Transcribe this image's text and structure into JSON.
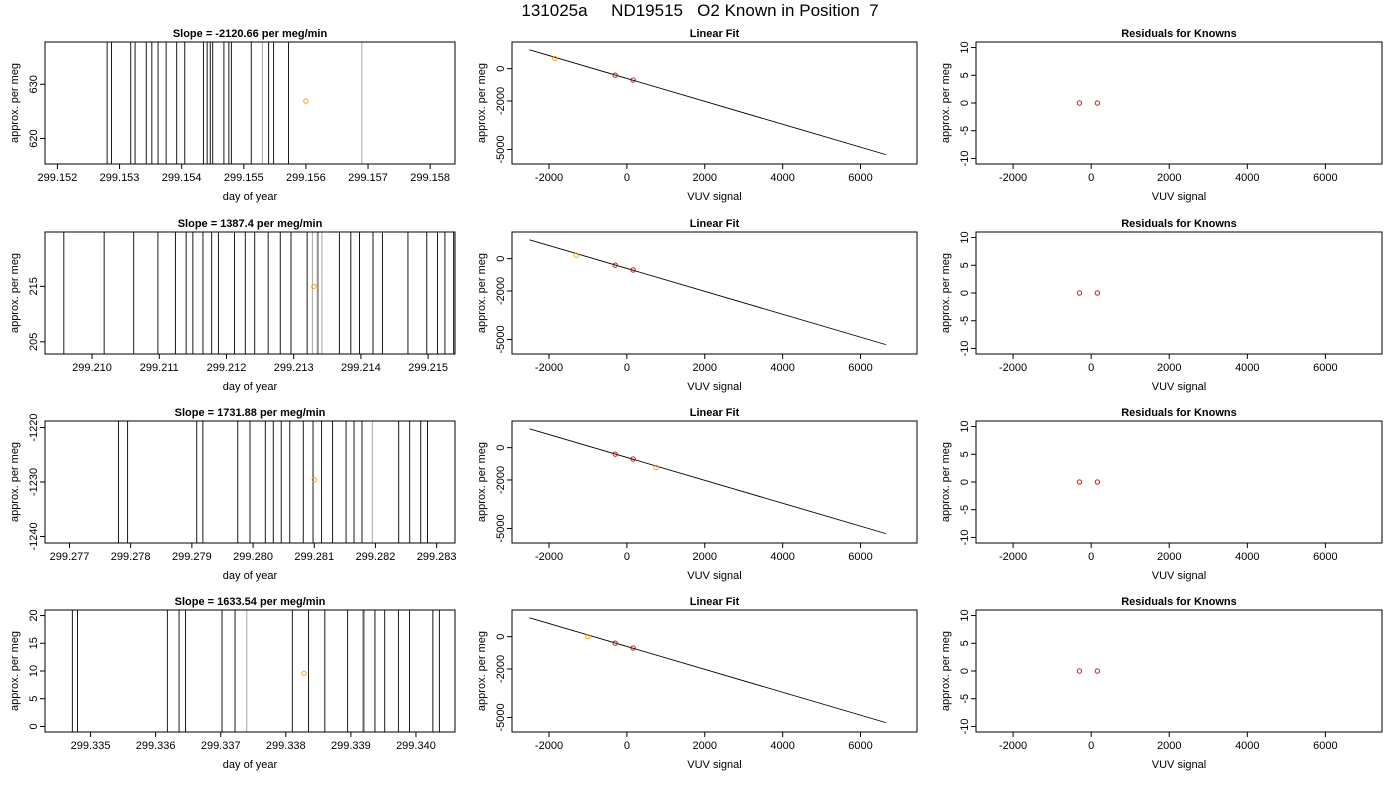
{
  "title": "131025a     ND19515   O2 Known in Position  7",
  "colors": {
    "axis": "#000000",
    "trace": "#000000",
    "trace_grey": "#b4b4b4",
    "known": "#ff9900",
    "fit_point": "#cc0000",
    "fit_line": "#000000"
  },
  "chart_data": [
    {
      "panel": "time-series",
      "type": "line",
      "title": "Slope =  -2120.66  per meg/min",
      "xlabel": "day of year",
      "ylabel": "approx. per meg",
      "xlim": [
        299.1518,
        299.1584
      ],
      "ylim": [
        615.3,
        637.8
      ],
      "xticks": [
        "299.152",
        "299.153",
        "299.154",
        "299.155",
        "299.156",
        "299.157",
        "299.158"
      ],
      "yticks": [
        "620",
        "630"
      ],
      "trace_x": [
        299.1528,
        299.15287,
        299.15318,
        299.15325,
        299.15343,
        299.15352,
        299.15362,
        299.15375,
        299.15392,
        299.15405,
        299.15435,
        299.15441,
        299.15446,
        299.1545,
        299.15468,
        299.15476,
        299.1548,
        299.15512,
        299.1554,
        299.15548,
        299.15572
      ],
      "grey_x": [
        299.1553,
        299.1569
      ],
      "known_point": {
        "x": 299.156,
        "y": 626.9
      }
    },
    {
      "panel": "linear-fit",
      "type": "scatter",
      "title": "Linear Fit",
      "xlabel": "VUV signal",
      "ylabel": "approx. per meg",
      "xlim": [
        -2950,
        7450
      ],
      "ylim": [
        -5900,
        1650
      ],
      "xticks": [
        "-2000",
        "0",
        "2000",
        "4000",
        "6000"
      ],
      "yticks": [
        "0",
        "-2000",
        "-5000"
      ],
      "fit_line": [
        [
          -2500,
          1170
        ],
        [
          6650,
          -5320
        ]
      ],
      "standards": [
        {
          "x": -300,
          "y": -400
        },
        {
          "x": 160,
          "y": -700
        }
      ],
      "known_point": {
        "x": -1850,
        "y": 630
      }
    },
    {
      "panel": "residuals",
      "type": "scatter",
      "title": "Residuals for Knowns",
      "xlabel": "VUV signal",
      "ylabel": "approx. per meg",
      "xlim": [
        -2950,
        7450
      ],
      "ylim": [
        -11,
        11
      ],
      "xticks": [
        "-2000",
        "0",
        "2000",
        "4000",
        "6000"
      ],
      "yticks": [
        "-10",
        "-5",
        "0",
        "5",
        "10"
      ],
      "points": [
        {
          "x": -300,
          "y": 0
        },
        {
          "x": 160,
          "y": 0
        }
      ]
    },
    {
      "panel": "time-series",
      "type": "line",
      "title": "Slope =  1387.4  per meg/min",
      "xlabel": "day of year",
      "ylabel": "approx. per meg",
      "xlim": [
        299.2093,
        299.2154
      ],
      "ylim": [
        202.8,
        224.8
      ],
      "xticks": [
        "299.210",
        "299.211",
        "299.212",
        "299.213",
        "299.214",
        "299.215"
      ],
      "yticks": [
        "205",
        "215"
      ],
      "trace_x": [
        299.20958,
        299.21018,
        299.21062,
        299.21098,
        299.21124,
        299.2114,
        299.2115,
        299.21165,
        299.21178,
        299.21188,
        299.21212,
        299.21228,
        299.21242,
        299.21262,
        299.2128,
        299.21296,
        299.2132,
        299.21336,
        299.21368,
        299.21385,
        299.21398,
        299.21418,
        299.21432,
        299.2147,
        299.21498,
        299.21514,
        299.21525,
        299.21538
      ],
      "grey_x": [
        299.21328,
        299.21335,
        299.21342
      ],
      "known_point": {
        "x": 299.2133,
        "y": 215.0
      }
    },
    {
      "panel": "linear-fit",
      "type": "scatter",
      "title": "Linear Fit",
      "xlabel": "VUV signal",
      "ylabel": "approx. per meg",
      "xlim": [
        -2950,
        7450
      ],
      "ylim": [
        -5900,
        1650
      ],
      "xticks": [
        "-2000",
        "0",
        "2000",
        "4000",
        "6000"
      ],
      "yticks": [
        "0",
        "-2000",
        "-5000"
      ],
      "fit_line": [
        [
          -2500,
          1170
        ],
        [
          6650,
          -5320
        ]
      ],
      "standards": [
        {
          "x": -300,
          "y": -400
        },
        {
          "x": 160,
          "y": -700
        }
      ],
      "known_point": {
        "x": -1300,
        "y": 215
      }
    },
    {
      "panel": "residuals",
      "type": "scatter",
      "title": "Residuals for Knowns",
      "xlabel": "VUV signal",
      "ylabel": "approx. per meg",
      "xlim": [
        -2950,
        7450
      ],
      "ylim": [
        -11,
        11
      ],
      "xticks": [
        "-2000",
        "0",
        "2000",
        "4000",
        "6000"
      ],
      "yticks": [
        "-10",
        "-5",
        "0",
        "5",
        "10"
      ],
      "points": [
        {
          "x": -300,
          "y": 0
        },
        {
          "x": 160,
          "y": 0
        }
      ]
    },
    {
      "panel": "time-series",
      "type": "line",
      "title": "Slope =  1731.88  per meg/min",
      "xlabel": "day of year",
      "ylabel": "approx. per meg",
      "xlim": [
        299.2766,
        299.2833
      ],
      "ylim": [
        -1241.2,
        -1218.8
      ],
      "xticks": [
        "299.277",
        "299.278",
        "299.279",
        "299.280",
        "299.281",
        "299.282",
        "299.283"
      ],
      "yticks": [
        "-1240",
        "-1230",
        "-1220"
      ],
      "trace_x": [
        299.2778,
        299.27795,
        299.27908,
        299.27918,
        299.27975,
        299.27995,
        299.2802,
        299.28033,
        299.28046,
        299.2806,
        299.28082,
        299.28098,
        299.28112,
        299.2813,
        299.28152,
        299.28165,
        299.28178,
        299.28238,
        299.28256,
        299.28274,
        299.28285
      ],
      "grey_x": [
        299.28195
      ],
      "known_point": {
        "x": 299.281,
        "y": -1229.6
      }
    },
    {
      "panel": "linear-fit",
      "type": "scatter",
      "title": "Linear Fit",
      "xlabel": "VUV signal",
      "ylabel": "approx. per meg",
      "xlim": [
        -2950,
        7450
      ],
      "ylim": [
        -5900,
        1650
      ],
      "xticks": [
        "-2000",
        "0",
        "2000",
        "4000",
        "6000"
      ],
      "yticks": [
        "0",
        "-2000",
        "-5000"
      ],
      "fit_line": [
        [
          -2500,
          1170
        ],
        [
          6650,
          -5320
        ]
      ],
      "standards": [
        {
          "x": -300,
          "y": -400
        },
        {
          "x": 160,
          "y": -700
        }
      ],
      "known_point": {
        "x": 750,
        "y": -1230
      }
    },
    {
      "panel": "residuals",
      "type": "scatter",
      "title": "Residuals for Knowns",
      "xlabel": "VUV signal",
      "ylabel": "approx. per meg",
      "xlim": [
        -2950,
        7450
      ],
      "ylim": [
        -11,
        11
      ],
      "xticks": [
        "-2000",
        "0",
        "2000",
        "4000",
        "6000"
      ],
      "yticks": [
        "-10",
        "-5",
        "0",
        "5",
        "10"
      ],
      "points": [
        {
          "x": -300,
          "y": 0
        },
        {
          "x": 160,
          "y": 0
        }
      ]
    },
    {
      "panel": "time-series",
      "type": "line",
      "title": "Slope =  1633.54  per meg/min",
      "xlabel": "day of year",
      "ylabel": "approx. per meg",
      "xlim": [
        299.3343,
        299.3406
      ],
      "ylim": [
        -1.0,
        21.0
      ],
      "xticks": [
        "299.335",
        "299.336",
        "299.337",
        "299.338",
        "299.339",
        "299.340"
      ],
      "yticks": [
        "0",
        "5",
        "10",
        "15",
        "20"
      ],
      "trace_x": [
        299.33472,
        299.3348,
        299.33618,
        299.33636,
        299.33646,
        299.33702,
        299.33722,
        299.3381,
        299.33835,
        299.3386,
        299.33895,
        299.3392,
        299.33937,
        299.33952,
        299.33973,
        299.3399,
        299.34026,
        299.34036
      ],
      "grey_x": [
        299.3374,
        299.33918
      ],
      "known_point": {
        "x": 299.33828,
        "y": 9.6
      }
    },
    {
      "panel": "linear-fit",
      "type": "scatter",
      "title": "Linear Fit",
      "xlabel": "VUV signal",
      "ylabel": "approx. per meg",
      "xlim": [
        -2950,
        7450
      ],
      "ylim": [
        -5900,
        1650
      ],
      "xticks": [
        "-2000",
        "0",
        "2000",
        "4000",
        "6000"
      ],
      "yticks": [
        "0",
        "-2000",
        "-5000"
      ],
      "fit_line": [
        [
          -2500,
          1170
        ],
        [
          6650,
          -5320
        ]
      ],
      "standards": [
        {
          "x": -300,
          "y": -400
        },
        {
          "x": 160,
          "y": -700
        }
      ],
      "known_point": {
        "x": -1000,
        "y": 10
      }
    },
    {
      "panel": "residuals",
      "type": "scatter",
      "title": "Residuals for Knowns",
      "xlabel": "VUV signal",
      "ylabel": "approx. per meg",
      "xlim": [
        -2950,
        7450
      ],
      "ylim": [
        -11,
        11
      ],
      "xticks": [
        "-2000",
        "0",
        "2000",
        "4000",
        "6000"
      ],
      "yticks": [
        "-10",
        "-5",
        "0",
        "5",
        "10"
      ],
      "points": [
        {
          "x": -300,
          "y": 0
        },
        {
          "x": 160,
          "y": 0
        }
      ]
    }
  ]
}
